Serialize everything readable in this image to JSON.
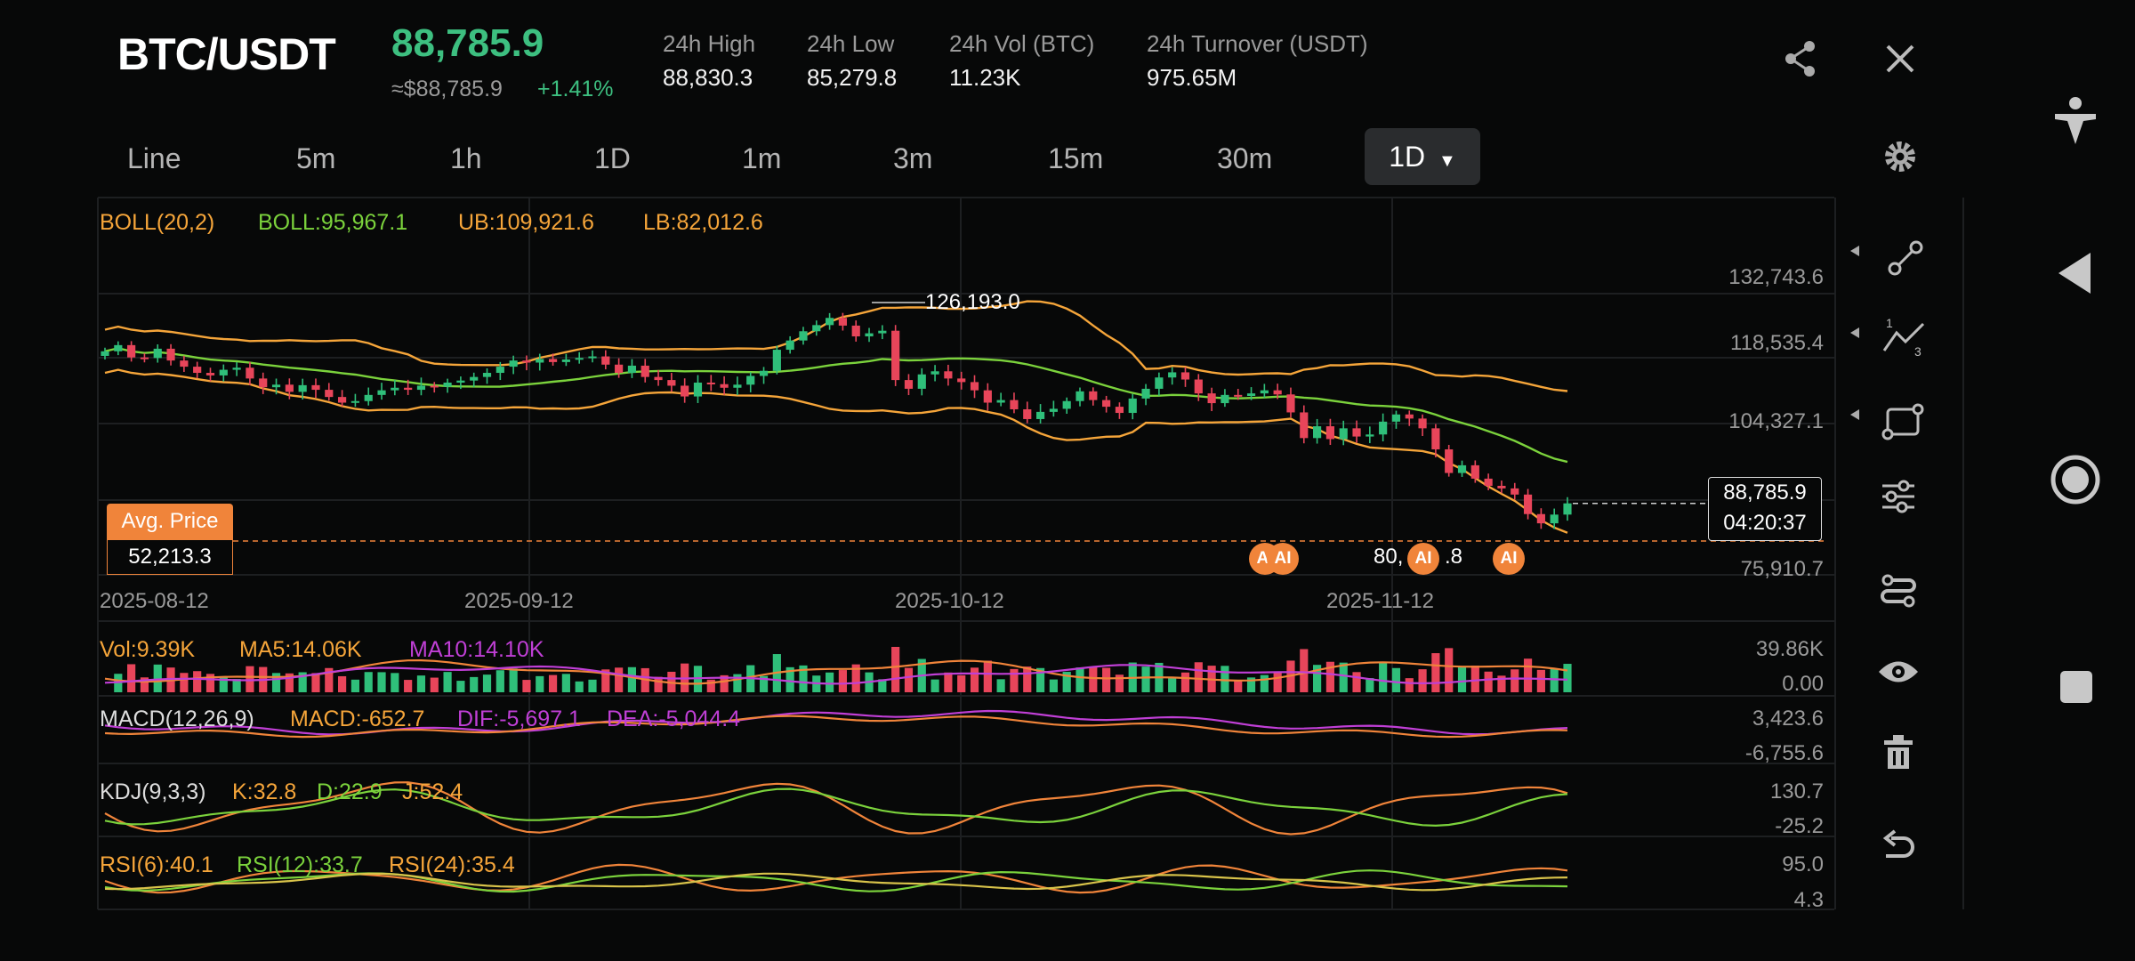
{
  "header": {
    "pair": "BTC/USDT",
    "price": "88,785.9",
    "usd_price": "≈$88,785.9",
    "change": "+1.41%",
    "stats": [
      {
        "label": "24h High",
        "value": "88,830.3"
      },
      {
        "label": "24h Low",
        "value": "85,279.8"
      },
      {
        "label": "24h Vol (BTC)",
        "value": "11.23K"
      },
      {
        "label": "24h Turnover (USDT)",
        "value": "975.65M"
      }
    ]
  },
  "tabs": [
    "Line",
    "5m",
    "1h",
    "1D",
    "1m",
    "3m",
    "15m",
    "30m"
  ],
  "active_interval": "1D",
  "boll": {
    "label": "BOLL(20,2)",
    "mid": "BOLL:95,967.1",
    "ub": "UB:109,921.6",
    "lb": "LB:82,012.6"
  },
  "price_axis": [
    "132,743.6",
    "118,535.4",
    "104,327.1",
    "75,910.7"
  ],
  "high_label": "126,193.0",
  "low_label": "80,",
  "low_label_tail": ".8",
  "current_price": {
    "price": "88,785.9",
    "countdown": "04:20:37"
  },
  "avg_price": {
    "label": "Avg. Price",
    "value": "52,213.3"
  },
  "ai_badges": [
    "AI",
    "AI",
    "AI",
    "AI"
  ],
  "dates": [
    "2025-08-12",
    "2025-09-12",
    "2025-10-12",
    "2025-11-12"
  ],
  "vol": {
    "label": "Vol:9.39K",
    "ma5": "MA5:14.06K",
    "ma10": "MA10:14.10K",
    "axis": [
      "39.86K",
      "0.00"
    ]
  },
  "macd": {
    "label": "MACD(12,26,9)",
    "macd": "MACD:-652.7",
    "dif": "DIF:-5,697.1",
    "dea": "DEA:-5,044.4",
    "axis": [
      "3,423.6",
      "-6,755.6"
    ]
  },
  "kdj": {
    "label": "KDJ(9,3,3)",
    "k": "K:32.8",
    "d": "D:22.9",
    "j": "J:52.4",
    "axis": [
      "130.7",
      "-25.2"
    ]
  },
  "rsi": {
    "label": "RSI(6):40.1",
    "r12": "RSI(12):33.7",
    "r24": "RSI(24):35.4",
    "axis": [
      "95.0",
      "4.3"
    ]
  },
  "colors": {
    "up": "#2fbf7a",
    "down": "#e8455a",
    "boll_mid": "#7bd23c",
    "boll_band": "#f5a53a",
    "purple": "#c03fd6",
    "accent": "#f0843a"
  },
  "tools": [
    "trendline-icon",
    "fib-icon",
    "rectangle-icon",
    "sliders-icon",
    "indicators-icon",
    "eye-icon",
    "trash-icon",
    "undo-icon"
  ],
  "chart_data": {
    "type": "candlestick",
    "title": "BTC/USDT 1D",
    "x_range": [
      "2025-08-06",
      "2025-11-26"
    ],
    "ylim": [
      75910.7,
      132743.6
    ],
    "closes": [
      118400,
      119600,
      117200,
      117100,
      118900,
      116600,
      115400,
      114200,
      113700,
      114800,
      115200,
      113100,
      111400,
      111900,
      110500,
      111800,
      110900,
      109500,
      108400,
      108700,
      109900,
      110800,
      111300,
      110900,
      111700,
      111500,
      112300,
      112700,
      113400,
      114200,
      115400,
      116600,
      116200,
      116900,
      116300,
      116800,
      117100,
      117400,
      115800,
      114200,
      115600,
      113400,
      112800,
      111700,
      109600,
      112300,
      112000,
      111300,
      111900,
      113600,
      114600,
      118700,
      120500,
      122300,
      123500,
      124900,
      123400,
      121300,
      121900,
      122400,
      112800,
      111100,
      113900,
      114500,
      113100,
      112400,
      110800,
      108400,
      108900,
      107100,
      105200,
      106600,
      107200,
      108700,
      110600,
      108900,
      107600,
      106400,
      109200,
      111100,
      113300,
      114300,
      112900,
      110200,
      108300,
      109900,
      109700,
      110200,
      110800,
      110000,
      106500,
      101500,
      103800,
      101300,
      103400,
      101800,
      102200,
      104700,
      106100,
      105300,
      103400,
      99300,
      94700,
      96200,
      93600,
      92200,
      91700,
      90500,
      86700,
      84900,
      86600,
      88785.9
    ]
  }
}
